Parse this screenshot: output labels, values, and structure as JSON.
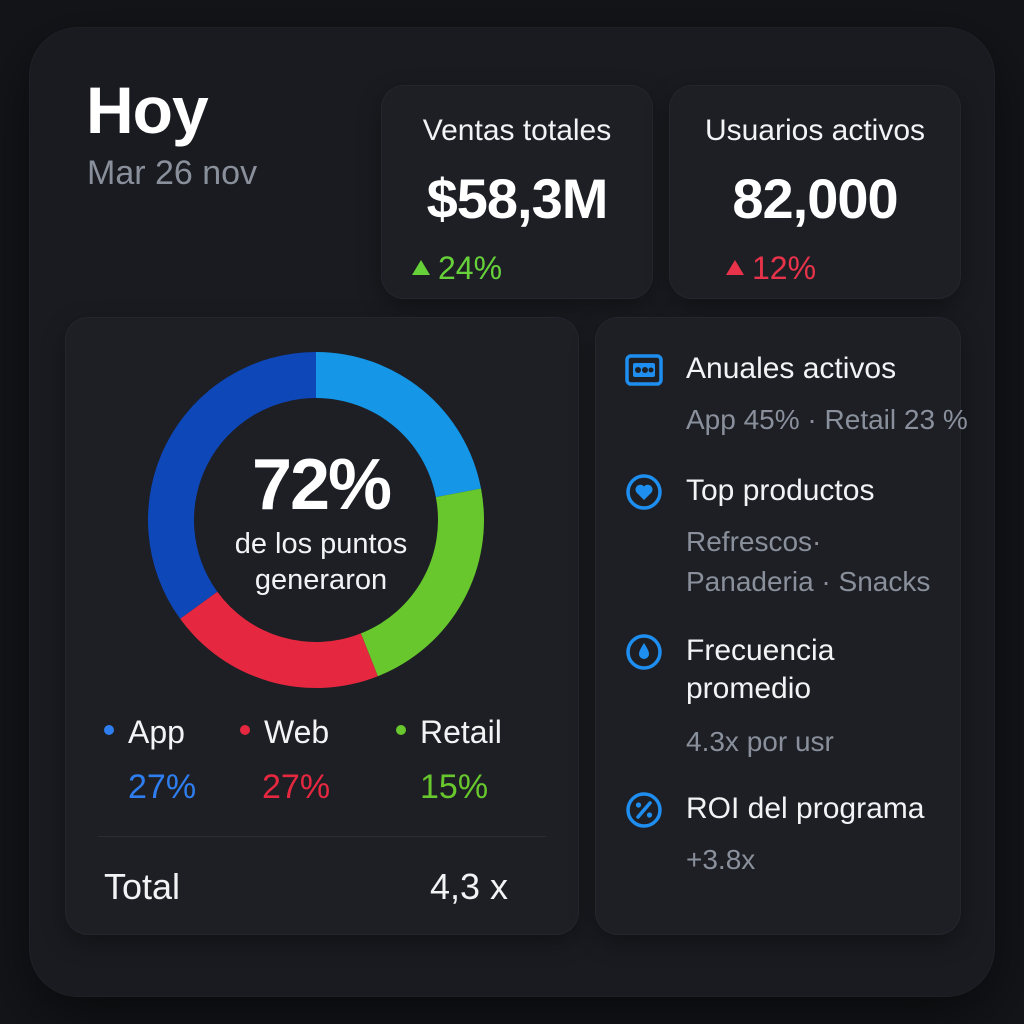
{
  "header": {
    "title": "Hoy",
    "date": "Mar 26 nov"
  },
  "stats": [
    {
      "label": "Ventas totales",
      "value": "$58,3M",
      "change": "24%",
      "direction": "up",
      "color": "#67d13a"
    },
    {
      "label": "Usuarios activos",
      "value": "82,000",
      "change": "12%",
      "direction": "up",
      "color": "#e8334a"
    }
  ],
  "donut": {
    "center_value": "72%",
    "center_line1": "de los puntos",
    "center_line2": "generaron",
    "segments": [
      {
        "name": "light-blue",
        "percent": 22,
        "color": "#1596e6"
      },
      {
        "name": "green",
        "percent": 22,
        "color": "#67c72c"
      },
      {
        "name": "red",
        "percent": 21,
        "color": "#e5283f"
      },
      {
        "name": "dark-blue",
        "percent": 35,
        "color": "#0d47b8"
      }
    ]
  },
  "legend": [
    {
      "label": "App",
      "value": "27%",
      "color": "#2f7ef0"
    },
    {
      "label": "Web",
      "value": "27%",
      "color": "#e5283f"
    },
    {
      "label": "Retail",
      "value": "15%",
      "color": "#67c72c"
    }
  ],
  "total": {
    "label": "Total",
    "value": "4,3 x"
  },
  "list": [
    {
      "icon": "id-card-icon",
      "title": "Anuales activos",
      "sub1": "App 45% · Retail 23 %",
      "sub2": ""
    },
    {
      "icon": "heart-icon",
      "title": "Top productos",
      "sub1": "Refrescos·",
      "sub2": "Panaderia · Snacks"
    },
    {
      "icon": "drop-icon",
      "title": "Frecuencia",
      "title2": "promedio",
      "sub1": "4.3x por usr",
      "sub2": ""
    },
    {
      "icon": "percent-icon",
      "title": "ROI del programa",
      "sub1": "+3.8x",
      "sub2": ""
    }
  ],
  "accent": "#1e8ff0"
}
